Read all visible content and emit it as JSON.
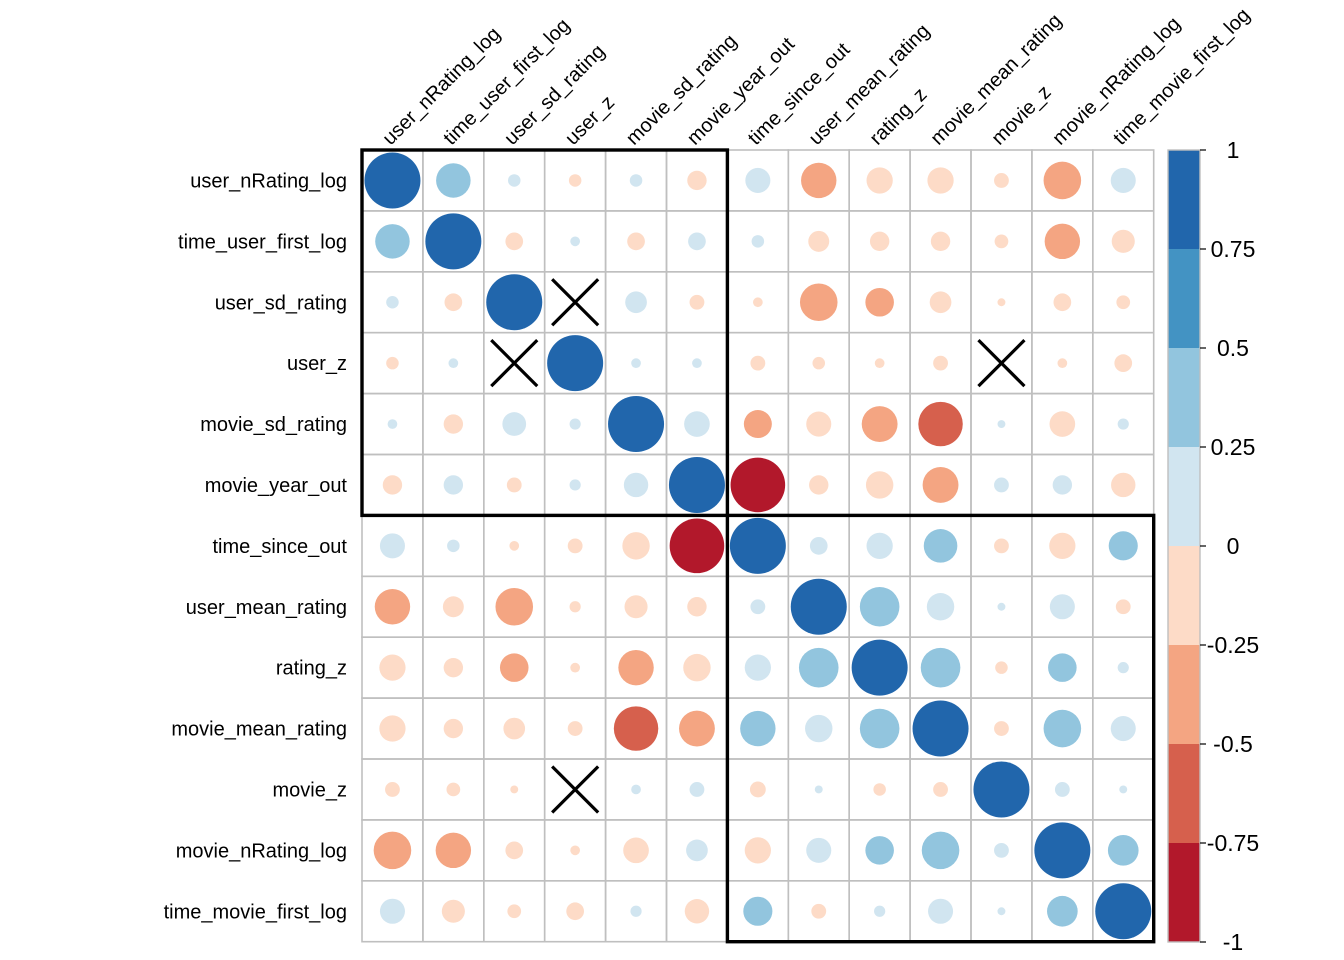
{
  "chart_data": {
    "type": "heatmap",
    "title": "",
    "variables": [
      "user_nRating_log",
      "time_user_first_log",
      "user_sd_rating",
      "user_z",
      "movie_sd_rating",
      "movie_year_out",
      "time_since_out",
      "user_mean_rating",
      "rating_z",
      "movie_mean_rating",
      "movie_z",
      "movie_nRating_log",
      "time_movie_first_log"
    ],
    "values": [
      [
        1.0,
        0.38,
        0.05,
        -0.05,
        0.05,
        -0.12,
        0.2,
        -0.4,
        -0.22,
        -0.22,
        -0.07,
        -0.45,
        0.2
      ],
      [
        0.38,
        1.0,
        -0.1,
        0.03,
        -0.1,
        0.1,
        0.05,
        -0.14,
        -0.12,
        -0.12,
        -0.06,
        -0.4,
        -0.17
      ],
      [
        0.05,
        -0.1,
        1.0,
        0.0,
        0.15,
        -0.07,
        -0.03,
        -0.45,
        -0.26,
        -0.15,
        -0.02,
        -0.1,
        -0.06
      ],
      [
        -0.05,
        0.03,
        0.0,
        1.0,
        0.03,
        0.03,
        -0.07,
        -0.05,
        -0.03,
        -0.07,
        0.0,
        -0.03,
        -0.1
      ],
      [
        0.03,
        -0.12,
        0.18,
        0.04,
        1.0,
        0.21,
        -0.25,
        -0.2,
        -0.41,
        -0.63,
        0.02,
        -0.21,
        0.04
      ],
      [
        -0.12,
        0.12,
        -0.07,
        0.04,
        0.19,
        1.0,
        -0.95,
        -0.12,
        -0.24,
        -0.41,
        0.07,
        0.12,
        -0.19
      ],
      [
        0.2,
        0.05,
        -0.03,
        -0.07,
        -0.24,
        -0.95,
        1.0,
        0.1,
        0.22,
        0.36,
        -0.07,
        -0.22,
        0.27
      ],
      [
        -0.4,
        -0.14,
        -0.45,
        -0.04,
        -0.17,
        -0.12,
        0.07,
        1.0,
        0.5,
        0.24,
        0.02,
        0.2,
        -0.07
      ],
      [
        -0.22,
        -0.12,
        -0.26,
        -0.03,
        -0.4,
        -0.24,
        0.22,
        0.5,
        1.0,
        0.5,
        -0.05,
        0.26,
        0.04
      ],
      [
        -0.22,
        -0.12,
        -0.15,
        -0.07,
        -0.63,
        -0.41,
        0.4,
        0.24,
        0.5,
        1.0,
        -0.07,
        0.45,
        0.2
      ],
      [
        -0.07,
        -0.06,
        -0.02,
        0.0,
        0.03,
        0.07,
        -0.08,
        0.02,
        -0.05,
        -0.07,
        1.0,
        0.07,
        0.02
      ],
      [
        -0.45,
        -0.4,
        -0.1,
        -0.03,
        -0.21,
        0.15,
        -0.22,
        0.2,
        0.26,
        0.45,
        0.07,
        1.0,
        0.3
      ],
      [
        0.2,
        -0.17,
        -0.06,
        -0.1,
        0.04,
        -0.19,
        0.27,
        -0.07,
        0.04,
        0.2,
        0.02,
        0.3,
        1.0
      ]
    ],
    "insignificant_cells": [
      [
        2,
        3
      ],
      [
        3,
        2
      ],
      [
        3,
        10
      ],
      [
        10,
        3
      ]
    ],
    "cluster_blocks": [
      {
        "start": 0,
        "end": 5
      },
      {
        "start": 6,
        "end": 12
      }
    ],
    "color_scale": {
      "breaks": [
        -1,
        -0.75,
        -0.5,
        -0.25,
        0,
        0.25,
        0.5,
        0.75,
        1
      ],
      "colors": [
        "#b2182b",
        "#d6604d",
        "#f4a582",
        "#fddbc7",
        "#d1e5f0",
        "#92c5de",
        "#4393c3",
        "#2166ac"
      ],
      "tick_labels": [
        "1",
        "0.75",
        "0.5",
        "0.25",
        "0",
        "-0.25",
        "-0.5",
        "-0.75",
        "-1"
      ]
    },
    "grid": true,
    "legend_placement": "right"
  }
}
